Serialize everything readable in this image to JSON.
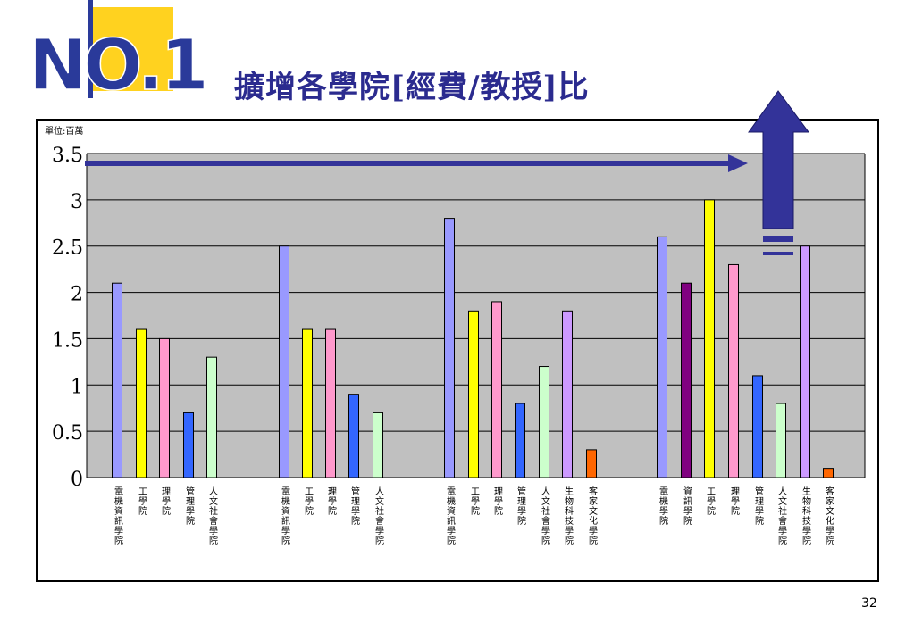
{
  "slide": {
    "logo_text": "NO.1",
    "title": "擴增各學院[經費/教授]比",
    "unit_label": "單位:百萬",
    "page_number": "32"
  },
  "colors": {
    "title": "#2b2b8f",
    "plot_bg": "#c0c0c0",
    "arrow": "#333399",
    "logo_blue": "#2a3a9a",
    "logo_yellow": "#ffd21f"
  },
  "chart_data": {
    "type": "bar",
    "ylim": [
      0,
      3.5
    ],
    "yticks": [
      "0",
      "0.5",
      "1",
      "1.5",
      "2",
      "2.5",
      "3",
      "3.5"
    ],
    "grid": true,
    "groups": [
      {
        "bars": [
          {
            "category": "電機資訊學院",
            "value": 2.1,
            "color": "#9999ff"
          },
          {
            "category": "工學院",
            "value": 1.6,
            "color": "#ffff00"
          },
          {
            "category": "理學院",
            "value": 1.5,
            "color": "#ff99cc"
          },
          {
            "category": "管理學院",
            "value": 0.7,
            "color": "#3366ff"
          },
          {
            "category": "人文社會學院",
            "value": 1.3,
            "color": "#ccffcc"
          }
        ]
      },
      {
        "bars": [
          {
            "category": "電機資訊學院",
            "value": 2.5,
            "color": "#9999ff"
          },
          {
            "category": "工學院",
            "value": 1.6,
            "color": "#ffff00"
          },
          {
            "category": "理學院",
            "value": 1.6,
            "color": "#ff99cc"
          },
          {
            "category": "管理學院",
            "value": 0.9,
            "color": "#3366ff"
          },
          {
            "category": "人文社會學院",
            "value": 0.7,
            "color": "#ccffcc"
          }
        ]
      },
      {
        "bars": [
          {
            "category": "電機資訊學院",
            "value": 2.8,
            "color": "#9999ff"
          },
          {
            "category": "工學院",
            "value": 1.8,
            "color": "#ffff00"
          },
          {
            "category": "理學院",
            "value": 1.9,
            "color": "#ff99cc"
          },
          {
            "category": "管理學院",
            "value": 0.8,
            "color": "#3366ff"
          },
          {
            "category": "人文社會學院",
            "value": 1.2,
            "color": "#ccffcc"
          },
          {
            "category": "生物科技學院",
            "value": 1.8,
            "color": "#cc99ff"
          },
          {
            "category": "客家文化學院",
            "value": 0.3,
            "color": "#ff6600"
          }
        ]
      },
      {
        "bars": [
          {
            "category": "電機學院",
            "value": 2.6,
            "color": "#9999ff"
          },
          {
            "category": "資訊學院",
            "value": 2.1,
            "color": "#800080"
          },
          {
            "category": "工學院",
            "value": 3.0,
            "color": "#ffff00"
          },
          {
            "category": "理學院",
            "value": 2.3,
            "color": "#ff99cc"
          },
          {
            "category": "管理學院",
            "value": 1.1,
            "color": "#3366ff"
          },
          {
            "category": "人文社會學院",
            "value": 0.8,
            "color": "#ccffcc"
          },
          {
            "category": "生物科技學院",
            "value": 2.5,
            "color": "#cc99ff"
          },
          {
            "category": "客家文化學院",
            "value": 0.1,
            "color": "#ff6600"
          }
        ]
      }
    ]
  }
}
